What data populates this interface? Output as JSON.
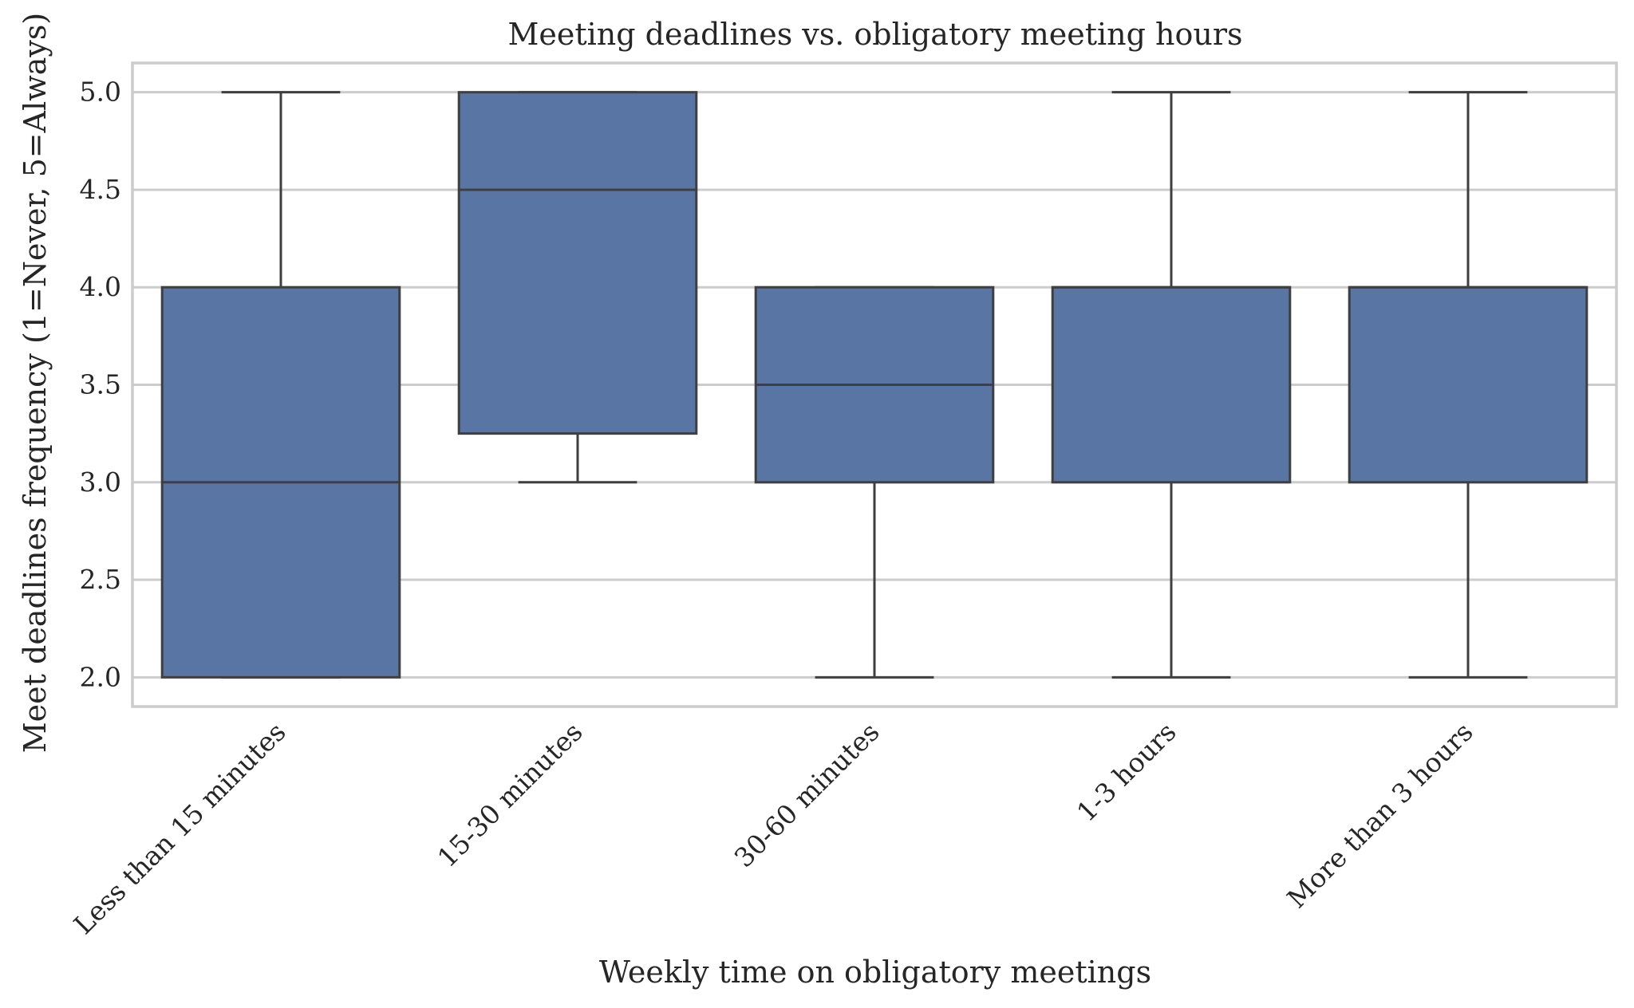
{
  "chart_data": {
    "type": "box",
    "title": "Meeting deadlines vs. obligatory meeting hours",
    "xlabel": "Weekly time on obligatory meetings",
    "ylabel": "Meet deadlines frequency (1=Never, 5=Always)",
    "ylim": [
      1.85,
      5.15
    ],
    "yticks": [
      2.0,
      2.5,
      3.0,
      3.5,
      4.0,
      4.5,
      5.0
    ],
    "ytick_labels": [
      "2.0",
      "2.5",
      "3.0",
      "3.5",
      "4.0",
      "4.5",
      "5.0"
    ],
    "grid": "horizontal",
    "box_color": "#5875a4",
    "line_color": "#3f3f3f",
    "categories": [
      "Less than 15 minutes",
      "15-30 minutes",
      "30-60 minutes",
      "1-3 hours",
      "More than 3 hours"
    ],
    "boxes": [
      {
        "whisker_low": 2.0,
        "q1": 2.0,
        "median": 3.0,
        "q3": 4.0,
        "whisker_high": 5.0
      },
      {
        "whisker_low": 3.0,
        "q1": 3.25,
        "median": 4.5,
        "q3": 5.0,
        "whisker_high": 5.0
      },
      {
        "whisker_low": 2.0,
        "q1": 3.0,
        "median": 3.5,
        "q3": 4.0,
        "whisker_high": 4.0
      },
      {
        "whisker_low": 2.0,
        "q1": 3.0,
        "median": 4.0,
        "q3": 4.0,
        "whisker_high": 5.0
      },
      {
        "whisker_low": 2.0,
        "q1": 3.0,
        "median": 4.0,
        "q3": 4.0,
        "whisker_high": 5.0
      }
    ]
  }
}
